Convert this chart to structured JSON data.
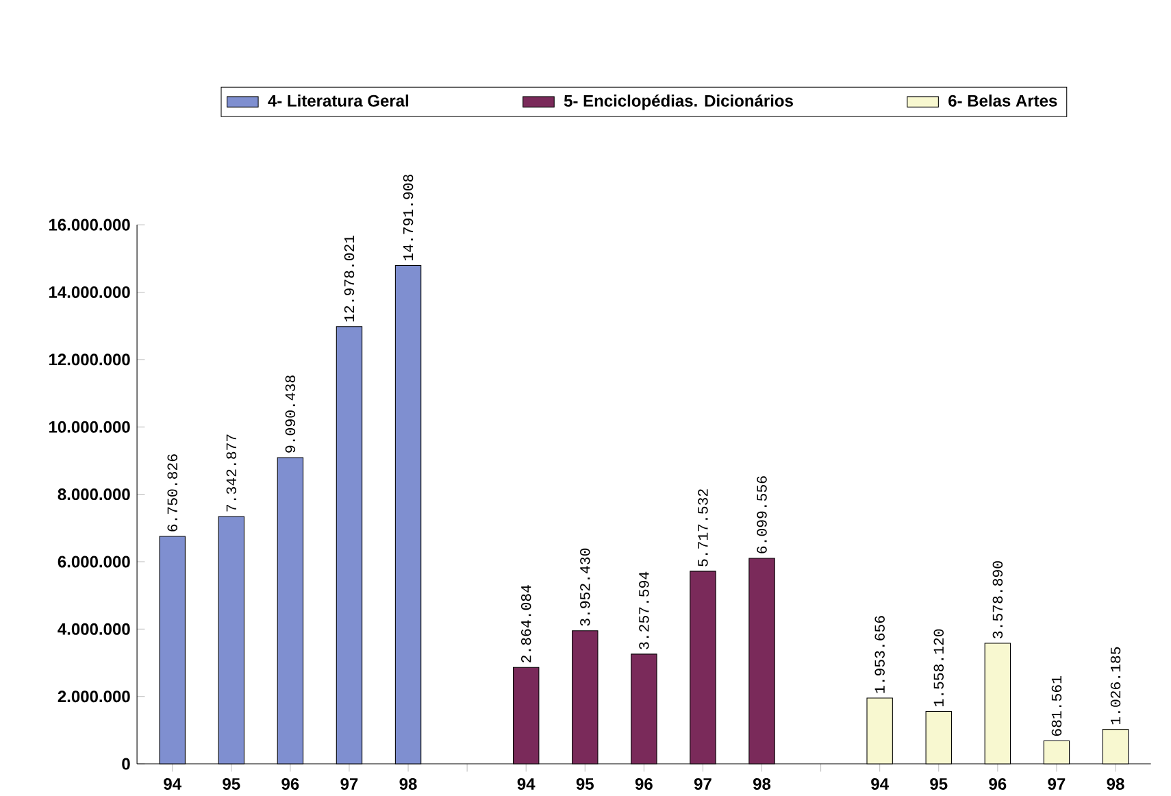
{
  "chart_data": {
    "type": "bar",
    "categories": [
      "94",
      "95",
      "96",
      "97",
      "98",
      null,
      "94",
      "95",
      "96",
      "97",
      "98",
      null,
      "94",
      "95",
      "96",
      "97",
      "98"
    ],
    "series": [
      {
        "name": "4- Literatura Geral",
        "color": "#7f8fd0",
        "values": [
          6750826,
          7342877,
          9090438,
          12978021,
          14791908,
          null,
          null,
          null,
          null,
          null,
          null,
          null,
          null,
          null,
          null,
          null,
          null
        ],
        "value_labels": [
          "6.750.826",
          "7.342.877",
          "9.090.438",
          "12.978.021",
          "14.791.908",
          null,
          null,
          null,
          null,
          null,
          null,
          null,
          null,
          null,
          null,
          null,
          null
        ]
      },
      {
        "name": "5- Enciclopédias. Dicionários",
        "color": "#7a2a5a",
        "values": [
          null,
          null,
          null,
          null,
          null,
          null,
          2864084,
          3952430,
          3257594,
          5717532,
          6099556,
          null,
          null,
          null,
          null,
          null,
          null
        ],
        "value_labels": [
          null,
          null,
          null,
          null,
          null,
          null,
          "2.864.084",
          "3.952.430",
          "3.257.594",
          "5.717.532",
          "6.099.556",
          null,
          null,
          null,
          null,
          null,
          null
        ]
      },
      {
        "name": "6- Belas Artes",
        "color": "#f8f8d0",
        "values": [
          null,
          null,
          null,
          null,
          null,
          null,
          null,
          null,
          null,
          null,
          null,
          null,
          1953656,
          1558120,
          3578890,
          681561,
          1026185
        ],
        "value_labels": [
          null,
          null,
          null,
          null,
          null,
          null,
          null,
          null,
          null,
          null,
          null,
          null,
          "1.953.656",
          "1.558.120",
          "3.578.890",
          "681.561",
          "1.026.185"
        ]
      }
    ],
    "ylim": [
      0,
      16000000
    ],
    "yticks": [
      {
        "value": 0,
        "label": "0"
      },
      {
        "value": 2000000,
        "label": "2.000.000"
      },
      {
        "value": 4000000,
        "label": "4.000.000"
      },
      {
        "value": 6000000,
        "label": "6.000.000"
      },
      {
        "value": 8000000,
        "label": "8.000.000"
      },
      {
        "value": 10000000,
        "label": "10.000.000"
      },
      {
        "value": 12000000,
        "label": "12.000.000"
      },
      {
        "value": 14000000,
        "label": "14.000.000"
      },
      {
        "value": 16000000,
        "label": "16.000.000"
      }
    ],
    "legend": "top",
    "grid": false
  }
}
